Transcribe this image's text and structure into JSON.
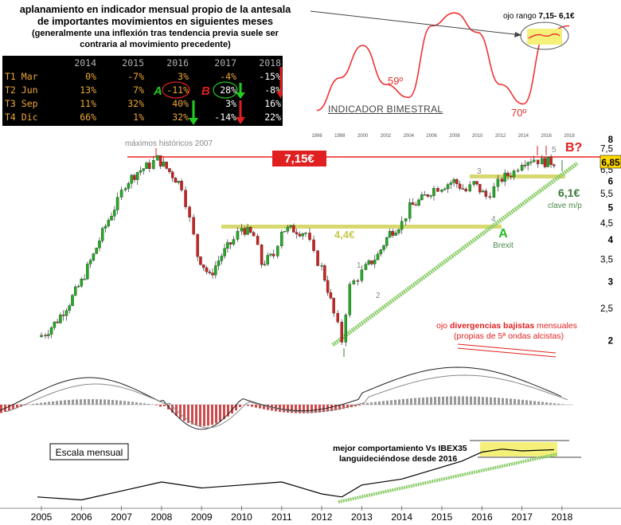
{
  "header": {
    "line1": "aplanamiento en indicador mensual propio de la antesala",
    "line2": "de importantes movimientos en siguientes meses",
    "line3": "(generalmente una inflexión tras tendencia previa suele ser",
    "line4": "contraria al movimiento precedente)"
  },
  "table": {
    "years": [
      "2014",
      "2015",
      "2016",
      "2017",
      "2018"
    ],
    "rows": [
      {
        "label": "T1 Mar",
        "values": [
          "0%",
          "-7%",
          "3%",
          "-4%",
          "-15%"
        ]
      },
      {
        "label": "T2 Jun",
        "values": [
          "13%",
          "7%",
          "-11%",
          "28%",
          "-8%"
        ]
      },
      {
        "label": "T3 Sep",
        "values": [
          "11%",
          "32%",
          "40%",
          "3%",
          "16%"
        ]
      },
      {
        "label": "T4 Dic",
        "values": [
          "66%",
          "1%",
          "32%",
          "-14%",
          "22%"
        ]
      }
    ],
    "mark_a": "A",
    "mark_b": "B"
  },
  "indicator": {
    "label": "INDICADOR BIMESTRAL",
    "note_prefix": "ojo rango ",
    "note_value": "7,15- 6,1€",
    "label_59": "59º",
    "label_70": "70º",
    "top_years": [
      "1996",
      "1998",
      "2000",
      "2002",
      "2004",
      "2006",
      "2008",
      "2010",
      "2012",
      "2014",
      "2016",
      "2018"
    ]
  },
  "annotations": {
    "maximos": "máximos históricos 2007",
    "level_715": "7,15€",
    "level_44": "4,4€",
    "level_61": "6,1€",
    "clave": "clave m/p",
    "b_mark": "B?",
    "a_mark": "A",
    "brexit": "Brexit",
    "last_price": "6,85",
    "waves": [
      "1",
      "2",
      "3",
      "4",
      "5"
    ],
    "div_prefix": "ojo ",
    "div_bold": "divergencias bajistas",
    "div_suffix": " mensuales",
    "div_line2": "(propias de 5ª ondas alcistas)",
    "escala": "Escala mensual",
    "rel_line1": "mejor comportamiento Vs IBEX35",
    "rel_line2": "languideciéndose desde 2016"
  },
  "colors": {
    "price_up": "#22aa22",
    "price_down": "#cc2222",
    "resistance": "#ee2222",
    "support": "#d8d870",
    "trendline": "#88cc66",
    "indicator": "#ee3333",
    "histogram": "#d04848",
    "table_orange": "#f0a838"
  },
  "chart_data": [
    {
      "type": "candlestick",
      "x_axis": [
        "2005",
        "2006",
        "2007",
        "2008",
        "2009",
        "2010",
        "2011",
        "2012",
        "2013",
        "2014",
        "2015",
        "2016",
        "2017",
        "2018"
      ],
      "y_axis": [
        "2",
        "2,5",
        "3",
        "3,5",
        "4",
        "4,5",
        "5",
        "5,5",
        "6",
        "6,5",
        "7",
        "7,5",
        "8"
      ],
      "y_scale": "log",
      "ylim": [
        1.9,
        8.2
      ],
      "levels": [
        7.15,
        4.4,
        6.1
      ],
      "last": 6.85,
      "x": [
        2004.9,
        2005.1,
        2005.4,
        2005.7,
        2006.0,
        2006.3,
        2006.6,
        2006.9,
        2007.1,
        2007.4,
        2007.7,
        2007.9,
        2008.2,
        2008.5,
        2008.7,
        2008.9,
        2009.2,
        2009.5,
        2009.8,
        2010.0,
        2010.3,
        2010.5,
        2010.8,
        2011.0,
        2011.3,
        2011.6,
        2011.8,
        2012.0,
        2012.3,
        2012.5,
        2012.7,
        2012.9,
        2013.1,
        2013.4,
        2013.7,
        2014.0,
        2014.2,
        2014.5,
        2014.8,
        2015.0,
        2015.3,
        2015.6,
        2015.8,
        2016.1,
        2016.3,
        2016.5,
        2016.8,
        2017.0,
        2017.3,
        2017.5,
        2017.8
      ],
      "close": [
        2.05,
        2.1,
        2.3,
        2.6,
        3.0,
        3.6,
        4.4,
        5.2,
        5.9,
        6.4,
        6.7,
        7.0,
        6.4,
        5.8,
        4.6,
        3.6,
        3.1,
        3.6,
        4.0,
        4.35,
        4.1,
        3.4,
        3.6,
        4.3,
        4.3,
        4.2,
        3.6,
        3.3,
        2.4,
        2.0,
        2.9,
        3.1,
        3.3,
        3.6,
        4.2,
        4.5,
        5.0,
        5.3,
        5.7,
        5.8,
        6.0,
        5.6,
        5.9,
        5.4,
        5.7,
        6.1,
        6.4,
        6.9,
        7.0,
        6.85,
        6.85
      ],
      "title": ""
    },
    {
      "type": "line",
      "name": "INDICADOR BIMESTRAL",
      "x": [
        "1996",
        "1998",
        "2000",
        "2002",
        "2004",
        "2006",
        "2008",
        "2010",
        "2012",
        "2014",
        "2016",
        "2018"
      ],
      "values": [
        1,
        3.5,
        6,
        3,
        2,
        7.5,
        8.5,
        7,
        3,
        1.5,
        7,
        7.5
      ]
    },
    {
      "type": "line",
      "name": "mejor comportamiento Vs IBEX35",
      "x": [
        2004.9,
        2006.0,
        2007.0,
        2008.0,
        2009.0,
        2010.0,
        2011.0,
        2012.0,
        2012.5,
        2013.0,
        2014.0,
        2015.0,
        2015.5,
        2016.0,
        2016.5,
        2017.0,
        2017.8
      ],
      "values": [
        1.5,
        1.0,
        2.5,
        4.0,
        3.0,
        3.5,
        4.0,
        2.0,
        1.5,
        3.5,
        4.5,
        6.5,
        7.5,
        9.0,
        9.5,
        9.2,
        9.4
      ]
    }
  ]
}
